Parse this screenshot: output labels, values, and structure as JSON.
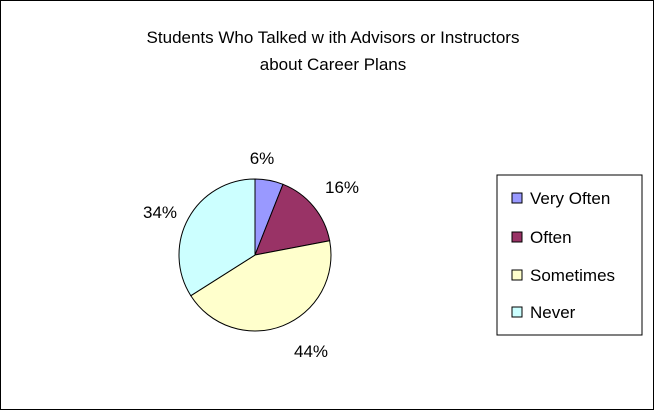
{
  "chart_data": {
    "type": "pie",
    "title_lines": [
      "Students Who Talked w ith Advisors or Instructors",
      "about Career Plans"
    ],
    "slices": [
      {
        "label": "Very Often",
        "value": 6,
        "label_text": "6%",
        "color": "#9999ff"
      },
      {
        "label": "Often",
        "value": 16,
        "label_text": "16%",
        "color": "#993366"
      },
      {
        "label": "Sometimes",
        "value": 44,
        "label_text": "44%",
        "color": "#ffffcc"
      },
      {
        "label": "Never",
        "value": 34,
        "label_text": "34%",
        "color": "#ccffff"
      }
    ],
    "legend_position": "right"
  }
}
